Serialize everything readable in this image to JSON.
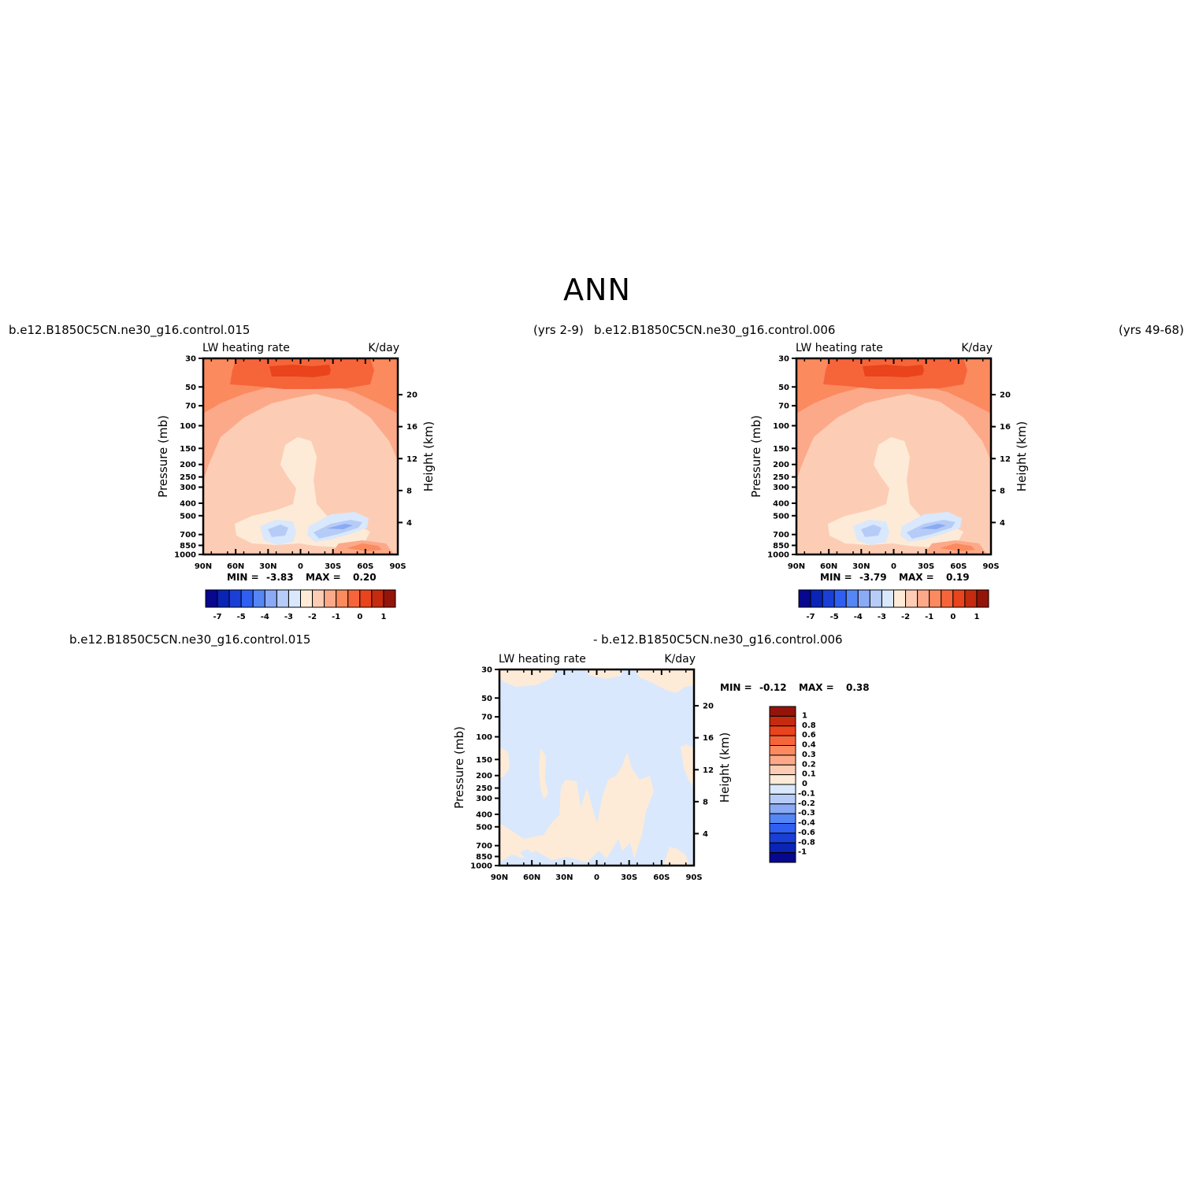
{
  "figure": {
    "title": "ANN"
  },
  "chart_data": [
    {
      "type": "heatmap",
      "id": "panel1",
      "title_left": "b.e12.B1850C5CN.ne30_g16.control.015",
      "title_right": "(yrs 2-9)",
      "variable": "LW heating rate",
      "units": "K/day",
      "xlabel": "",
      "ylabel": "Pressure (mb)",
      "ylabel_right": "Height (km)",
      "xticks": [
        "90N",
        "60N",
        "30N",
        "0",
        "30S",
        "60S",
        "90S"
      ],
      "yticks": [
        30,
        50,
        70,
        100,
        150,
        200,
        250,
        300,
        400,
        500,
        700,
        850,
        1000
      ],
      "yticks_right": [
        20,
        16,
        12,
        8,
        4
      ],
      "ylim": [
        1000,
        30
      ],
      "y_scale": "log",
      "min_label": "MIN =",
      "min_value": "-3.83",
      "max_label": "MAX =",
      "max_value": "0.20",
      "colorbar": {
        "orientation": "horizontal",
        "labels": [
          "-7",
          "-5",
          "-4",
          "-3",
          "-2",
          "-1",
          "0",
          "1"
        ],
        "colors": [
          "#07078f",
          "#0a25b5",
          "#1a3fd6",
          "#2f5ff2",
          "#5586f5",
          "#8aaaf5",
          "#b6ccf7",
          "#d9e8fc",
          "#fdebd8",
          "#fccdb4",
          "#fca98a",
          "#fb8a5e",
          "#f6653a",
          "#e9441c",
          "#c52b0f",
          "#95140a"
        ]
      },
      "regions": [
        "orange 300-30 mb band",
        "dark orange 100-30 mb core",
        "light orange troposphere",
        "cream tropical column",
        "blue lower-troposphere minimum near 850 mb"
      ]
    },
    {
      "type": "heatmap",
      "id": "panel2",
      "title_left": "b.e12.B1850C5CN.ne30_g16.control.006",
      "title_right": "(yrs 49-68)",
      "variable": "LW heating rate",
      "units": "K/day",
      "xlabel": "",
      "ylabel": "Pressure (mb)",
      "ylabel_right": "Height (km)",
      "xticks": [
        "90N",
        "60N",
        "30N",
        "0",
        "30S",
        "60S",
        "90S"
      ],
      "yticks": [
        30,
        50,
        70,
        100,
        150,
        200,
        250,
        300,
        400,
        500,
        700,
        850,
        1000
      ],
      "yticks_right": [
        20,
        16,
        12,
        8,
        4
      ],
      "ylim": [
        1000,
        30
      ],
      "y_scale": "log",
      "min_label": "MIN =",
      "min_value": "-3.79",
      "max_label": "MAX =",
      "max_value": "0.19",
      "colorbar": {
        "orientation": "horizontal",
        "labels": [
          "-7",
          "-5",
          "-4",
          "-3",
          "-2",
          "-1",
          "0",
          "1"
        ],
        "colors": [
          "#07078f",
          "#0a25b5",
          "#1a3fd6",
          "#2f5ff2",
          "#5586f5",
          "#8aaaf5",
          "#b6ccf7",
          "#d9e8fc",
          "#fdebd8",
          "#fccdb4",
          "#fca98a",
          "#fb8a5e",
          "#f6653a",
          "#e9441c",
          "#c52b0f",
          "#95140a"
        ]
      }
    },
    {
      "type": "heatmap",
      "id": "panel3",
      "title_left": "b.e12.B1850C5CN.ne30_g16.control.015",
      "title_right": "- b.e12.B1850C5CN.ne30_g16.control.006",
      "variable": "LW heating rate",
      "units": "K/day",
      "xlabel": "",
      "ylabel": "Pressure (mb)",
      "ylabel_right": "Height (km)",
      "xticks": [
        "90N",
        "60N",
        "30N",
        "0",
        "30S",
        "60S",
        "90S"
      ],
      "yticks": [
        30,
        50,
        70,
        100,
        150,
        200,
        250,
        300,
        400,
        500,
        700,
        850,
        1000
      ],
      "yticks_right": [
        20,
        16,
        12,
        8,
        4
      ],
      "ylim": [
        1000,
        30
      ],
      "y_scale": "log",
      "min_label": "MIN =",
      "min_value": "-0.12",
      "max_label": "MAX =",
      "max_value": "0.38",
      "colorbar": {
        "orientation": "vertical",
        "labels": [
          "1",
          "0.8",
          "0.6",
          "0.4",
          "0.3",
          "0.2",
          "0.1",
          "0",
          "-0.1",
          "-0.2",
          "-0.3",
          "-0.4",
          "-0.6",
          "-0.8",
          "-1"
        ],
        "colors": [
          "#95140a",
          "#c52b0f",
          "#e9441c",
          "#f6653a",
          "#fb8a5e",
          "#fca98a",
          "#fccdb4",
          "#fdebd8",
          "#d9e8fc",
          "#b6ccf7",
          "#8aaaf5",
          "#5586f5",
          "#2f5ff2",
          "#1a3fd6",
          "#0a25b5",
          "#07078f"
        ]
      }
    }
  ]
}
